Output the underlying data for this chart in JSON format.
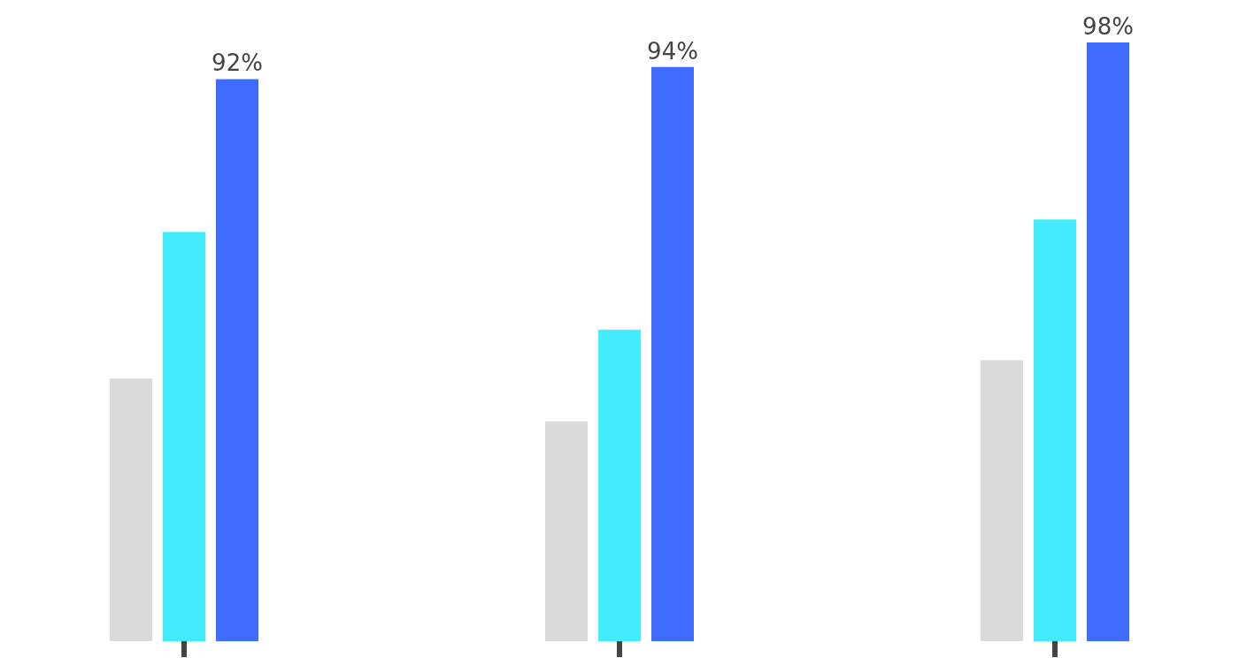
{
  "chart_data": {
    "type": "bar",
    "categories": [
      null,
      null,
      null
    ],
    "series": [
      {
        "color": "#dadada",
        "values": [
          43,
          36,
          46
        ]
      },
      {
        "color": "#42ecfd",
        "values": [
          67,
          51,
          69
        ]
      },
      {
        "color": "#3e6cff",
        "values": [
          92,
          94,
          98
        ],
        "value_labels": [
          "92%",
          "94%",
          "98%"
        ]
      }
    ]
  }
}
